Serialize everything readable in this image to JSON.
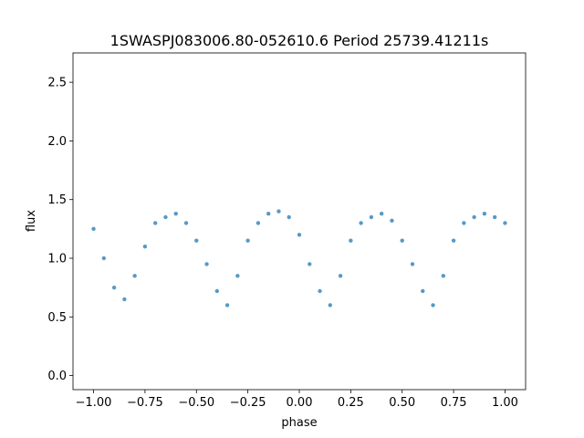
{
  "chart_data": {
    "type": "scatter",
    "title": "1SWASPJ083006.80-052610.6 Period 25739.41211s",
    "xlabel": "phase",
    "ylabel": "flux",
    "xlim": [
      -1.1,
      1.1
    ],
    "ylim": [
      -0.12,
      2.75
    ],
    "xticks": [
      -1.0,
      -0.75,
      -0.5,
      -0.25,
      0.0,
      0.25,
      0.5,
      0.75,
      1.0
    ],
    "xtick_labels": [
      "−1.00",
      "−0.75",
      "−0.50",
      "−0.25",
      "0.00",
      "0.25",
      "0.50",
      "0.75",
      "1.00"
    ],
    "yticks": [
      0.0,
      0.5,
      1.0,
      1.5,
      2.0,
      2.5
    ],
    "ytick_labels": [
      "0.0",
      "0.5",
      "1.0",
      "1.5",
      "2.0",
      "2.5"
    ],
    "grid": false,
    "marker_color": "#1f77b4",
    "series": [
      {
        "x": [
          -1.0,
          -0.95,
          -0.9,
          -0.85,
          -0.8,
          -0.75,
          -0.7,
          -0.65,
          -0.6,
          -0.55,
          -0.5,
          -0.45,
          -0.4,
          -0.35,
          -0.3,
          -0.25,
          -0.2,
          -0.15,
          -0.1,
          -0.05,
          0.0,
          0.05,
          0.1,
          0.15,
          0.2,
          0.25,
          0.3,
          0.35,
          0.4,
          0.45,
          0.5,
          0.55,
          0.6,
          0.65,
          0.7,
          0.75,
          0.8,
          0.85,
          0.9,
          0.95,
          1.0
        ],
        "y": [
          1.25,
          1.0,
          0.75,
          0.65,
          0.85,
          1.1,
          1.3,
          1.35,
          1.38,
          1.3,
          1.15,
          0.95,
          0.72,
          0.6,
          0.85,
          1.15,
          1.3,
          1.38,
          1.4,
          1.35,
          1.2,
          0.95,
          0.72,
          0.6,
          0.85,
          1.15,
          1.3,
          1.35,
          1.38,
          1.32,
          1.15,
          0.95,
          0.72,
          0.6,
          0.85,
          1.15,
          1.3,
          1.35,
          1.38,
          1.35,
          1.3
        ]
      }
    ]
  }
}
